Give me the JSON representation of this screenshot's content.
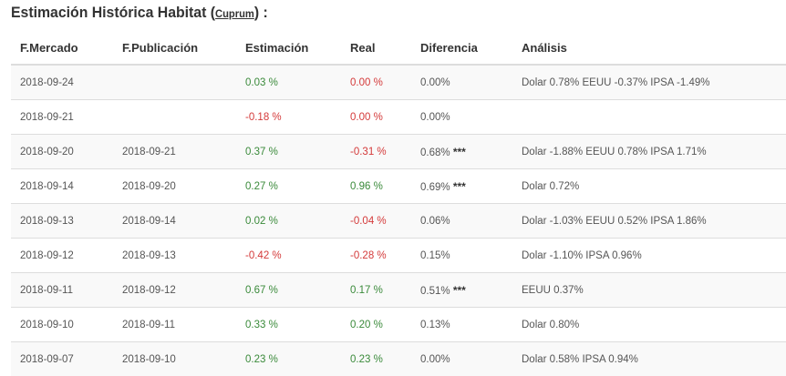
{
  "header": {
    "title": "Estimación Histórica Habitat",
    "open_paren": "(",
    "link": "Cuprum",
    "close": ") :"
  },
  "columns": [
    "F.Mercado",
    "F.Publicación",
    "Estimación",
    "Real",
    "Diferencia",
    "Análisis"
  ],
  "rows": [
    {
      "mercado": "2018-09-24",
      "publicacion": "",
      "estimacion": "0.03 %",
      "est_color": "pos",
      "real": "0.00 %",
      "real_color": "zero",
      "diferencia": "0.00%",
      "stars": "",
      "analisis": "Dolar 0.78% EEUU -0.37% IPSA -1.49%"
    },
    {
      "mercado": "2018-09-21",
      "publicacion": "",
      "estimacion": "-0.18 %",
      "est_color": "neg",
      "real": "0.00 %",
      "real_color": "zero",
      "diferencia": "0.00%",
      "stars": "",
      "analisis": ""
    },
    {
      "mercado": "2018-09-20",
      "publicacion": "2018-09-21",
      "estimacion": "0.37 %",
      "est_color": "pos",
      "real": "-0.31 %",
      "real_color": "neg",
      "diferencia": "0.68%",
      "stars": "***",
      "analisis": "Dolar -1.88% EEUU 0.78% IPSA 1.71%"
    },
    {
      "mercado": "2018-09-14",
      "publicacion": "2018-09-20",
      "estimacion": "0.27 %",
      "est_color": "pos",
      "real": "0.96 %",
      "real_color": "pos",
      "diferencia": "0.69%",
      "stars": "***",
      "analisis": "Dolar 0.72%"
    },
    {
      "mercado": "2018-09-13",
      "publicacion": "2018-09-14",
      "estimacion": "0.02 %",
      "est_color": "pos",
      "real": "-0.04 %",
      "real_color": "neg",
      "diferencia": "0.06%",
      "stars": "",
      "analisis": "Dolar -1.03% EEUU 0.52% IPSA 1.86%"
    },
    {
      "mercado": "2018-09-12",
      "publicacion": "2018-09-13",
      "estimacion": "-0.42 %",
      "est_color": "neg",
      "real": "-0.28 %",
      "real_color": "neg",
      "diferencia": "0.15%",
      "stars": "",
      "analisis": "Dolar -1.10% IPSA 0.96%"
    },
    {
      "mercado": "2018-09-11",
      "publicacion": "2018-09-12",
      "estimacion": "0.67 %",
      "est_color": "pos",
      "real": "0.17 %",
      "real_color": "pos",
      "diferencia": "0.51%",
      "stars": "***",
      "analisis": "EEUU 0.37%"
    },
    {
      "mercado": "2018-09-10",
      "publicacion": "2018-09-11",
      "estimacion": "0.33 %",
      "est_color": "pos",
      "real": "0.20 %",
      "real_color": "pos",
      "diferencia": "0.13%",
      "stars": "",
      "analisis": "Dolar 0.80%"
    },
    {
      "mercado": "2018-09-07",
      "publicacion": "2018-09-10",
      "estimacion": "0.23 %",
      "est_color": "pos",
      "real": "0.23 %",
      "real_color": "pos",
      "diferencia": "0.00%",
      "stars": "",
      "analisis": "Dolar 0.58% IPSA 0.94%"
    }
  ],
  "colors": {
    "positive": "#3a8a3a",
    "negative": "#d43a3a",
    "zebra": "#f9f9f9",
    "border": "#dddddd"
  }
}
